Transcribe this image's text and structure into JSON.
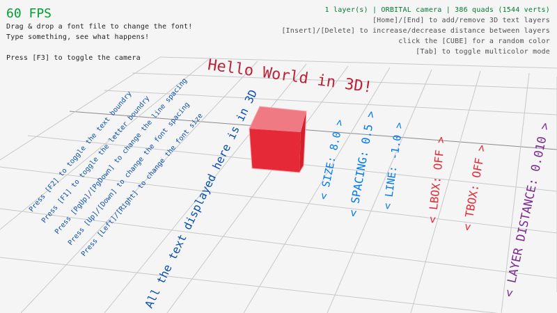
{
  "hud": {
    "fps": "60 FPS",
    "help_lines": [
      "Drag & drop a font file to change the font!",
      "Type something, see what happens!",
      "Press [F3] to toggle the camera"
    ],
    "status": "1 layer(s) | ORBITAL camera |  386 quads (1544 verts)",
    "right_lines": [
      "[Home]/[End] to add/remove 3D text layers",
      "[Insert]/[Delete] to increase/decrease distance between layers",
      "click the [CUBE] for a random color",
      "[Tab] to toggle multicolor mode"
    ]
  },
  "scene": {
    "title_text": "Hello World in 3D!",
    "instructions": [
      "Press [F2] to toggle the text boundry",
      "Press [F1] to toggle the letter boundry",
      "Press [PgUp]/[PgDown] to change the line spacing",
      "Press [Up]/[Down] to change the font spacing",
      "Press [Left]/[Right] to change the font size"
    ],
    "big_text": "All the text displayed here is in 3D",
    "labels": {
      "size": "< SIZE: 8.0 >",
      "spacing": "< SPACING: 0.5 >",
      "line": "< LINE: -1.0 >",
      "lbox": "< LBOX: OFF >",
      "tbox": "< TBOX: OFF >",
      "layer_distance": "< LAYER DISTANCE: 0.010 >"
    },
    "colors": {
      "cube": "#e62937",
      "title": "#be2137",
      "text_blue": "#0a4fae",
      "label_blue": "#0079f1",
      "label_red": "#e62937",
      "label_purple": "#7b2a8e",
      "fps": "#00a030"
    }
  }
}
